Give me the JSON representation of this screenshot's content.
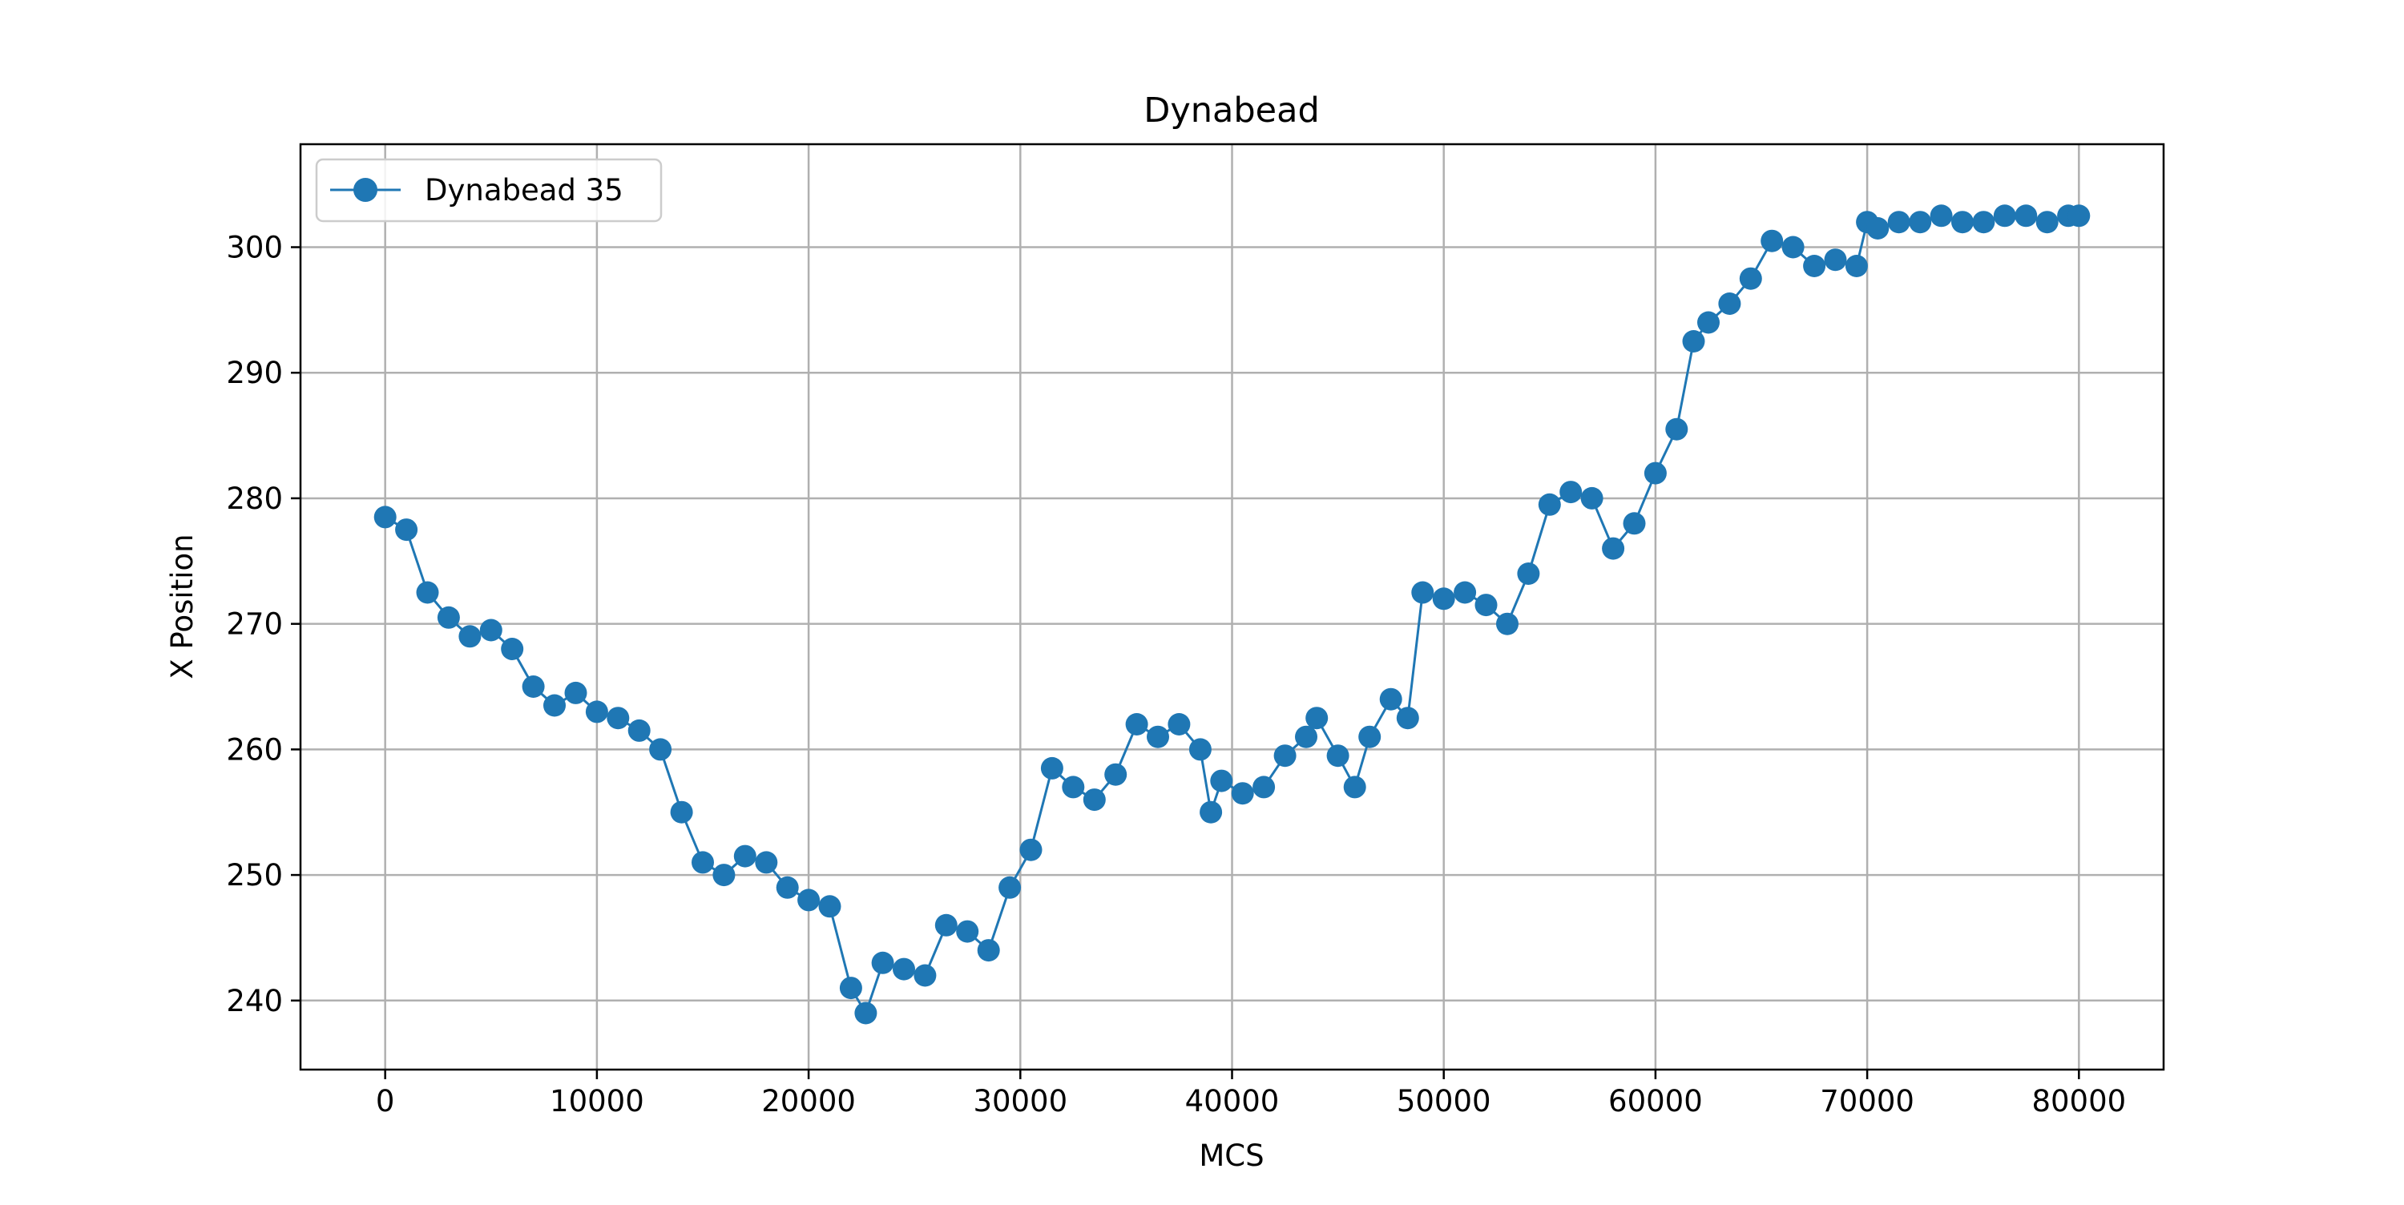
{
  "chart_data": {
    "type": "line",
    "title": "Dynabead",
    "xlabel": "MCS",
    "ylabel": "X Position",
    "xlim": [
      -4000,
      84000
    ],
    "ylim": [
      234.5,
      308.2
    ],
    "xticks": [
      0,
      10000,
      20000,
      30000,
      40000,
      50000,
      60000,
      70000,
      80000
    ],
    "yticks": [
      240,
      250,
      260,
      270,
      280,
      290,
      300
    ],
    "grid": true,
    "legend_position": "top-left",
    "series": [
      {
        "name": "Dynabead 35",
        "color": "#1f77b4",
        "marker": "circle",
        "x": [
          0,
          1000,
          2000,
          3000,
          4000,
          5000,
          6000,
          7000,
          8000,
          9000,
          10000,
          11000,
          12000,
          13000,
          14000,
          15000,
          16000,
          17000,
          18000,
          19000,
          20000,
          21000,
          22000,
          22700,
          23500,
          24500,
          25500,
          26500,
          27500,
          28500,
          29500,
          30500,
          31500,
          32500,
          33500,
          34500,
          35500,
          36500,
          37500,
          38500,
          39000,
          39500,
          40500,
          41500,
          42500,
          43500,
          44000,
          45000,
          45800,
          46500,
          47500,
          48300,
          49000,
          50000,
          51000,
          52000,
          53000,
          54000,
          55000,
          56000,
          57000,
          58000,
          59000,
          60000,
          61000,
          61800,
          62500,
          63500,
          64500,
          65500,
          66500,
          67500,
          68500,
          69500,
          70000,
          70500,
          71500,
          72500,
          73500,
          74500,
          75500,
          76500,
          77500,
          78500,
          79500,
          80000
        ],
        "y": [
          278.5,
          277.5,
          272.5,
          270.5,
          269.0,
          269.5,
          268.0,
          265.0,
          263.5,
          264.5,
          263.0,
          262.5,
          261.5,
          260.0,
          255.0,
          251.0,
          250.0,
          251.5,
          251.0,
          249.0,
          248.0,
          247.5,
          241.0,
          239.0,
          243.0,
          242.5,
          242.0,
          246.0,
          245.5,
          244.0,
          249.0,
          252.0,
          258.5,
          257.0,
          256.0,
          258.0,
          262.0,
          261.0,
          262.0,
          260.0,
          255.0,
          257.5,
          256.5,
          257.0,
          259.5,
          261.0,
          262.5,
          259.5,
          257.0,
          261.0,
          264.0,
          262.5,
          272.5,
          272.0,
          272.5,
          271.5,
          270.0,
          274.0,
          279.5,
          280.5,
          280.0,
          276.0,
          278.0,
          282.0,
          285.5,
          292.5,
          294.0,
          295.5,
          297.5,
          300.5,
          300.0,
          298.5,
          299.0,
          298.5,
          302.0,
          301.5,
          302.0,
          302.0,
          302.5,
          302.0,
          302.0,
          302.5,
          302.5,
          302.0,
          302.5,
          302.5
        ]
      }
    ]
  }
}
